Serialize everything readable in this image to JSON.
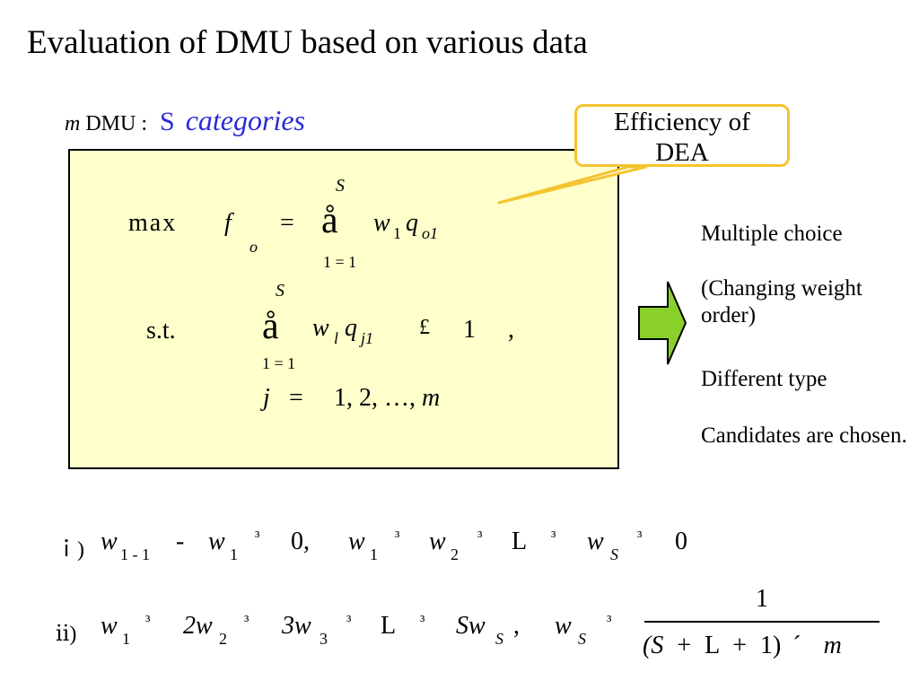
{
  "slide": {
    "title": "Evaluation of DMU based on various data",
    "intro": {
      "m": "m",
      "dmu": "DMU :",
      "s": "S",
      "categories": "categories"
    },
    "callout": {
      "line1": "Efficiency of",
      "line2": "DEA"
    },
    "formula": {
      "upper1": "S",
      "max": "max",
      "f": "f",
      "f_sub": "o",
      "eq": "=",
      "sum": "å",
      "w": "w",
      "w_sub1": "1",
      "q": "q",
      "q_sub1": "o1",
      "lower1": "1 = 1",
      "upper2": "S",
      "st": "s.t.",
      "sum2": "å",
      "w2": "w",
      "w2_sub": "l",
      "q2": "q",
      "q2_sub": "j1",
      "le": "£",
      "one": "1",
      "comma": ",",
      "lower2": "1 = 1",
      "j": "j",
      "eq3": "=",
      "range": "1, 2, …, ",
      "m": "m"
    },
    "side_notes": [
      "Multiple choice",
      "(Changing weight order)",
      "Different type",
      "Candidates are chosen."
    ],
    "cond1": {
      "label": "ｉ)",
      "parts": [
        "w",
        "1 - 1",
        "-",
        "w",
        "1",
        "³",
        "0,",
        "w",
        "1",
        "³",
        "w",
        "2",
        "³",
        "L",
        "³",
        "w",
        "S",
        "³",
        "0"
      ]
    },
    "cond2": {
      "label": "ⅱ)",
      "parts": [
        "w",
        "1",
        "³",
        "2w",
        "2",
        "³",
        "3w",
        "3",
        "³",
        "L",
        "³",
        "Sw",
        "S",
        ",",
        "w",
        "S",
        "³"
      ],
      "numerator": "1",
      "denominator": [
        "(S",
        "+",
        "L",
        "+",
        "1)",
        "´",
        "m"
      ]
    },
    "colors": {
      "box_fill": "#ffffcc",
      "callout_border": "#f4c430",
      "arrow_fill": "#8ad02b",
      "accent_blue": "#2b2bd6"
    }
  }
}
